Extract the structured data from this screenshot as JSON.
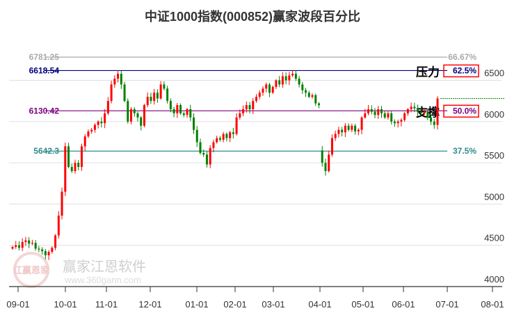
{
  "chart_data": {
    "type": "candlestick",
    "title": "中证1000指数(000852)赢家波段百分比",
    "ylim": [
      4000,
      6800
    ],
    "y_ticks": [
      4000,
      4500,
      5000,
      5500,
      6000,
      6500
    ],
    "x_ticks": [
      "09-01",
      "10-01",
      "11-01",
      "12-01",
      "01-01",
      "02-01",
      "03-01",
      "04-01",
      "05-01",
      "06-01",
      "07-01",
      "08-01"
    ],
    "levels": [
      {
        "value": 6781.25,
        "label": "6781.25",
        "pct": "66.67%",
        "color": "#aaaaaa",
        "boxed": false
      },
      {
        "value": 6618.54,
        "label": "6618.54",
        "pct": "62.5%",
        "color": "#000080",
        "boxed": true,
        "tag": "压力"
      },
      {
        "value": 6130.42,
        "label": "6130.42",
        "pct": "50.0%",
        "color": "#800080",
        "boxed": true,
        "tag": "支撑"
      },
      {
        "value": 5642.3,
        "label": "5642.3",
        "pct": "37.5%",
        "color": "#2e8b8b",
        "boxed": false
      }
    ],
    "closes": [
      4480,
      4500,
      4470,
      4540,
      4560,
      4520,
      4530,
      4460,
      4450,
      4430,
      4380,
      4420,
      4470,
      4620,
      4860,
      5150,
      5700,
      5450,
      5400,
      5500,
      5450,
      5700,
      5820,
      5880,
      5900,
      5960,
      6000,
      5980,
      6100,
      6250,
      6450,
      6520,
      6580,
      6450,
      6250,
      6000,
      6150,
      6100,
      6050,
      5950,
      6200,
      6300,
      6250,
      6350,
      6280,
      6450,
      6400,
      6250,
      6150,
      6100,
      6200,
      6100,
      6080,
      6150,
      6050,
      5900,
      5750,
      5620,
      5600,
      5480,
      5680,
      5750,
      5800,
      5780,
      5850,
      5800,
      5870,
      5850,
      6050,
      6100,
      6150,
      6200,
      6150,
      6250,
      6300,
      6350,
      6400,
      6450,
      6350,
      6420,
      6500,
      6450,
      6550,
      6500,
      6560,
      6580,
      6520,
      6450,
      6380,
      6350,
      6300,
      6320,
      6220,
      6200,
      5500,
      5400,
      5600,
      5800,
      5850,
      5900,
      5870,
      5950,
      5900,
      5950,
      5880,
      5900,
      6050,
      6100,
      6150,
      6120,
      6080,
      6150,
      6100,
      6050,
      6100,
      6000,
      5980,
      6000,
      6020,
      6100,
      6150,
      6180,
      6160,
      6120,
      6100,
      6120,
      6050,
      6000,
      5960,
      6280
    ],
    "up_color": "#ff0000",
    "down_color": "#008000"
  },
  "watermark": {
    "brand": "赢家江恩软件",
    "url": "www.360gann.com",
    "seal": "江赢恩家"
  }
}
